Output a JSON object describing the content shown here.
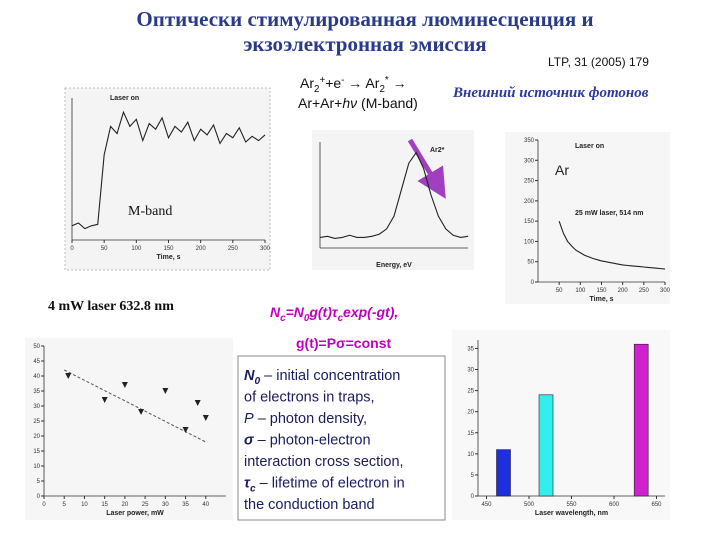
{
  "header": {
    "title_lines": [
      "Оптически стимулированная люминесценция и",
      "экзоэлектронная эмиссия"
    ],
    "reference": "LTP, 31 (2005) 179"
  },
  "reaction": {
    "line1": [
      {
        "text": "Ar"
      },
      {
        "text": "2",
        "script": "sub"
      },
      {
        "text": "+",
        "script": "sup"
      },
      {
        "text": "+e"
      },
      {
        "text": "-",
        "script": "sup"
      },
      {
        "text": " → Ar"
      },
      {
        "text": "2",
        "script": "sub"
      },
      {
        "text": "*",
        "script": "sup"
      },
      {
        "text": " →"
      }
    ],
    "line2": [
      {
        "text": "Ar+Ar+"
      },
      {
        "text": "h",
        "style": "italic"
      },
      {
        "text": "ν",
        "style": "italic"
      },
      {
        "text": " (M-band)"
      }
    ],
    "source": "Внешний источник фотонов"
  },
  "labels": {
    "mband": "M-band",
    "laser": "4 mW laser  632.8 nm",
    "ar": "Ar"
  },
  "formula1": [
    {
      "text": "N"
    },
    {
      "text": "c",
      "script": "sub"
    },
    {
      "text": "=N"
    },
    {
      "text": "0",
      "script": "sub"
    },
    {
      "text": "g(t)τ"
    },
    {
      "text": "c",
      "script": "sub"
    },
    {
      "text": "exp(-gt),"
    }
  ],
  "formula2": [
    {
      "text": "g(t)=Pσ=const"
    }
  ],
  "definitions": [
    [
      {
        "text": "N",
        "style": "bi"
      },
      {
        "text": "0",
        "script": "sub",
        "style": "bi"
      },
      {
        "text": " – initial concentration"
      }
    ],
    [
      {
        "text": "of electrons in traps,"
      }
    ],
    [
      {
        "text": "P",
        "style": "italic"
      },
      {
        "text": " – photon density,"
      }
    ],
    [
      {
        "text": "σ",
        "style": "bi"
      },
      {
        "text": " – photon-electron"
      }
    ],
    [
      {
        "text": "interaction cross section,"
      }
    ],
    [
      {
        "text": "τ",
        "style": "bi"
      },
      {
        "text": "c",
        "script": "sub",
        "style": "bi"
      },
      {
        "text": " – lifetime  of electron in"
      }
    ],
    [
      {
        "text": "the conduction band"
      }
    ]
  ],
  "charts": [
    {
      "type": "line",
      "x_label": "Time, s",
      "annotations": [
        "Laser on"
      ],
      "x": [
        0,
        10,
        20,
        30,
        40,
        50,
        60,
        70,
        80,
        90,
        100,
        110,
        120,
        130,
        140,
        150,
        160,
        170,
        180,
        190,
        200,
        210,
        220,
        230,
        240,
        250,
        260,
        270,
        280,
        290,
        300
      ],
      "values": [
        1,
        1.2,
        0.8,
        1,
        1.1,
        6,
        8,
        7.5,
        9,
        8,
        8.5,
        7,
        8.2,
        7.8,
        8.6,
        7.2,
        8,
        7.6,
        8.3,
        7,
        7.8,
        7.4,
        8.1,
        6.8,
        7.5,
        7.2,
        7.9,
        6.9,
        7.3,
        7,
        7.4
      ],
      "xlim": [
        0,
        300
      ],
      "ylim": [
        0,
        10
      ],
      "xticks": [
        0,
        50,
        100,
        150,
        200,
        250,
        300
      ],
      "color": "#222222"
    },
    {
      "type": "line",
      "x_label": "Energy, eV",
      "annotations": [
        "Ar2*"
      ],
      "x": [
        0,
        1,
        2,
        3,
        4,
        5,
        6,
        7,
        8,
        9,
        10,
        11,
        12,
        13,
        14,
        15,
        16,
        17,
        18,
        19,
        20
      ],
      "values": [
        1,
        1.1,
        0.9,
        1,
        1.2,
        1,
        1,
        1.1,
        1.3,
        1.8,
        3,
        5.5,
        8,
        9,
        7.5,
        5,
        3,
        1.8,
        1.2,
        1,
        1.1
      ],
      "xlim": [
        0,
        20
      ],
      "ylim": [
        0,
        10
      ],
      "color": "#222222"
    },
    {
      "type": "line",
      "x_label": "Time, s",
      "annotations": [
        "Laser on",
        "25 mW laser, 514 nm"
      ],
      "x": [
        0,
        10,
        20,
        30,
        40,
        50,
        60,
        70,
        80,
        90,
        100,
        110,
        120,
        130,
        140,
        150,
        160,
        170,
        180,
        190,
        200,
        210,
        220,
        230,
        240,
        250,
        260,
        270,
        280,
        290,
        300
      ],
      "values": [
        null,
        null,
        null,
        null,
        null,
        150,
        120,
        100,
        88,
        78,
        72,
        66,
        62,
        58,
        55,
        52,
        50,
        48,
        46,
        44,
        42,
        41,
        40,
        39,
        38,
        37,
        36,
        35,
        34,
        33,
        32
      ],
      "xlim": [
        0,
        300
      ],
      "ylim": [
        0,
        350
      ],
      "xticks": [
        50,
        100,
        150,
        200,
        250,
        300
      ],
      "yticks": [
        0,
        50,
        100,
        150,
        200,
        250,
        300,
        350
      ],
      "color": "#222222"
    },
    {
      "type": "scatter",
      "x_label": "Laser power, mW",
      "x": [
        6,
        15,
        20,
        24,
        30,
        35,
        38,
        40
      ],
      "values": [
        40,
        32,
        37,
        28,
        35,
        22,
        31,
        26
      ],
      "trend": {
        "x": [
          5,
          40
        ],
        "values": [
          42,
          18
        ]
      },
      "xlim": [
        0,
        45
      ],
      "ylim": [
        0,
        50
      ],
      "xticks": [
        0,
        5,
        10,
        15,
        20,
        25,
        30,
        35,
        40
      ],
      "yticks": [
        0,
        5,
        10,
        15,
        20,
        25,
        30,
        35,
        40,
        45,
        50
      ],
      "color": "#222222"
    },
    {
      "type": "bar",
      "x_label": "Laser wavelength, nm",
      "x": [
        470,
        520,
        632
      ],
      "values": [
        11,
        24,
        36
      ],
      "colors": [
        "#1e2fe0",
        "#33eeee",
        "#d020d0"
      ],
      "xlim": [
        440,
        660
      ],
      "ylim": [
        0,
        37
      ],
      "xticks": [
        450,
        500,
        550,
        600,
        650
      ],
      "yticks": [
        0,
        5,
        10,
        15,
        20,
        25,
        30,
        35
      ]
    }
  ]
}
